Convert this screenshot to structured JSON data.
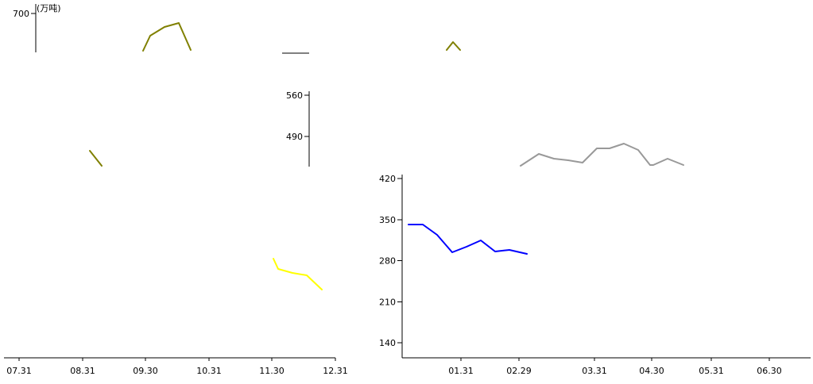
{
  "chart_data": [
    {
      "id": "panel-left",
      "type": "line",
      "unit": "(万吨)",
      "x_ticks": [
        "07.31",
        "08.31",
        "09.30",
        "10.31",
        "11.30",
        "12.31"
      ],
      "y_ticks": [
        700
      ],
      "series": [
        {
          "color": "#808000",
          "points": [
            [
              "09.30",
              680
            ],
            [
              "10.10",
              720
            ],
            [
              "10.20",
              740
            ],
            [
              "10.31",
              680
            ]
          ]
        },
        {
          "color": "#808000",
          "points": [
            [
              "08.31",
              470
            ],
            [
              "09.05",
              450
            ]
          ]
        },
        {
          "color": "#ffff00",
          "points": [
            [
              "11.30",
              300
            ],
            [
              "12.05",
              270
            ],
            [
              "12.20",
              260
            ],
            [
              "12.31",
              230
            ]
          ]
        }
      ]
    },
    {
      "id": "panel-middle",
      "type": "line",
      "y_ticks": [
        560,
        490
      ],
      "series": [
        {
          "color": "#808000",
          "points": [
            [
              "02.29",
              500
            ],
            [
              "03.05",
              520
            ],
            [
              "03.10",
              500
            ]
          ]
        },
        {
          "color": "#999999",
          "points": [
            [
              "04.15",
              410
            ],
            [
              "04.30",
              440
            ],
            [
              "05.10",
              430
            ],
            [
              "05.20",
              425
            ],
            [
              "05.31",
              460
            ],
            [
              "06.10",
              460
            ],
            [
              "06.20",
              470
            ],
            [
              "06.30",
              450
            ],
            [
              "07.05",
              420
            ],
            [
              "07.15",
              440
            ],
            [
              "07.31",
              430
            ]
          ]
        }
      ]
    },
    {
      "id": "panel-right",
      "type": "line",
      "x_ticks": [
        "01.31",
        "02.29",
        "03.31",
        "04.30",
        "05.31",
        "06.30"
      ],
      "y_ticks": [
        420,
        350,
        280,
        210,
        140
      ],
      "ylim": [
        140,
        420
      ],
      "series": [
        {
          "color": "#0000ff",
          "points": [
            [
              "12.31",
              340
            ],
            [
              "01.10",
              340
            ],
            [
              "01.20",
              325
            ],
            [
              "01.31",
              298
            ],
            [
              "02.10",
              305
            ],
            [
              "02.20",
              314
            ],
            [
              "02.29",
              300
            ],
            [
              "03.10",
              302
            ],
            [
              "03.20",
              298
            ]
          ]
        }
      ]
    }
  ]
}
